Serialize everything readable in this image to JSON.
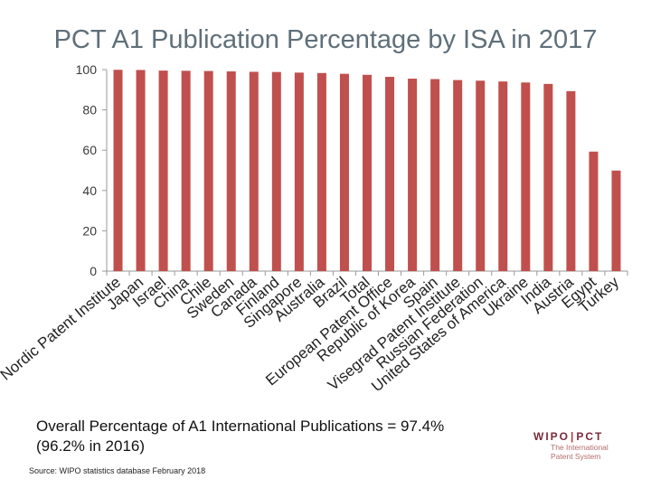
{
  "chart_data": {
    "type": "bar",
    "title": "PCT A1 Publication Percentage by ISA in 2017",
    "xlabel": "",
    "ylabel": "",
    "ylim": [
      0,
      100
    ],
    "yticks": [
      0,
      20,
      40,
      60,
      80,
      100
    ],
    "bar_color": "#c0504d",
    "categories": [
      "Nordic Patent Institute",
      "Japan",
      "Israel",
      "China",
      "Chile",
      "Sweden",
      "Canada",
      "Finland",
      "Singapore",
      "Australia",
      "Brazil",
      "Total",
      "European Patent Office",
      "Republic of Korea",
      "Spain",
      "Visegrad Patent Institute",
      "Russian Federation",
      "United States of America",
      "Ukraine",
      "India",
      "Austria",
      "Egypt",
      "Turkey"
    ],
    "values": [
      99.9,
      99.8,
      99.5,
      99.4,
      99.3,
      99.1,
      98.9,
      98.8,
      98.5,
      98.3,
      97.9,
      97.4,
      96.4,
      95.5,
      95.3,
      94.8,
      94.5,
      94.1,
      93.6,
      92.9,
      89.3,
      59.3,
      49.9
    ]
  },
  "summary": {
    "line1": "Overall Percentage of A1 International Publications = 97.4%",
    "line2": "(96.2% in 2016)"
  },
  "source": "Source: WIPO statistics database  February 2018",
  "logo": {
    "left": "WIPO",
    "separator": "|",
    "right": "PCT",
    "sub1": "The International",
    "sub2": "Patent System"
  }
}
